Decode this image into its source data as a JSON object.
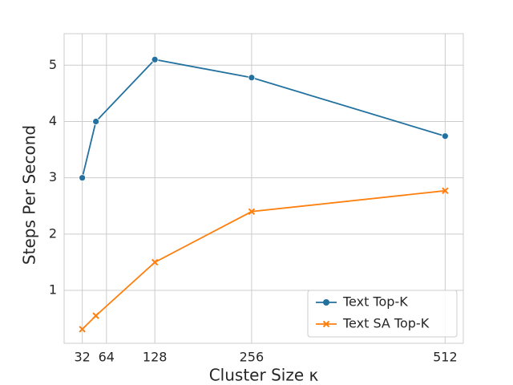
{
  "chart_data": {
    "type": "line",
    "xlabel": "Cluster Size κ",
    "ylabel": "Steps Per Second",
    "x": [
      32,
      50,
      128,
      256,
      512
    ],
    "series": [
      {
        "name": "Text Top-K",
        "color": "#23719f",
        "marker": "circle",
        "values": [
          3.0,
          4.0,
          5.1,
          4.78,
          3.74
        ]
      },
      {
        "name": "Text SA Top-K",
        "color": "#ff7f0e",
        "marker": "x",
        "values": [
          0.31,
          0.55,
          1.5,
          2.4,
          2.77
        ]
      }
    ],
    "xlim": [
      8,
      536
    ],
    "ylim": [
      0.06,
      5.56
    ],
    "xticks": [
      32,
      64,
      128,
      256,
      512
    ],
    "yticks": [
      1,
      2,
      3,
      4,
      5
    ],
    "grid": true,
    "legend": "lower right"
  }
}
